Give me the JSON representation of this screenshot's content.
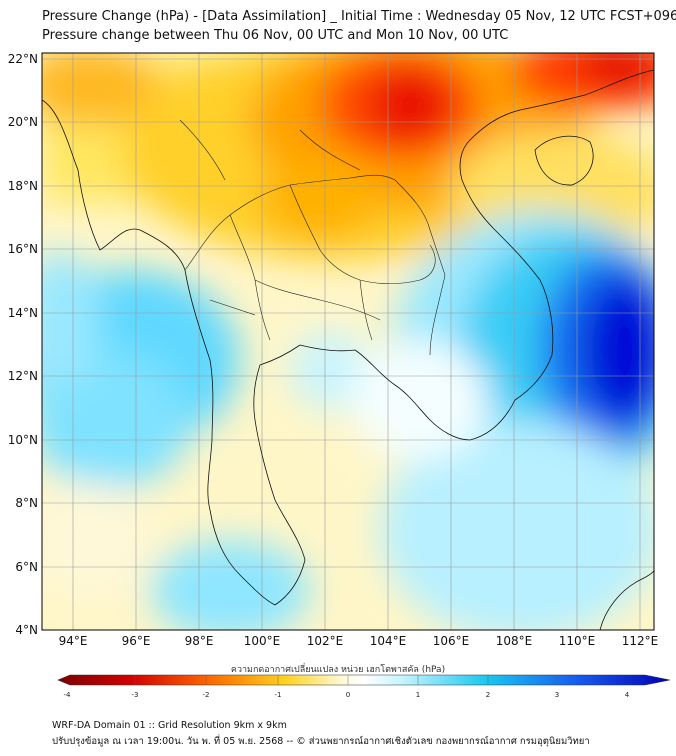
{
  "title_line1": "Pressure Change (hPa) - [Data Assimilation] _ Initial Time : Wednesday 05 Nov, 12 UTC FCST+096",
  "title_line2": "Pressure change between Thu 06 Nov, 00 UTC and Mon 10 Nov, 00 UTC",
  "lat_labels": [
    "22°N",
    "20°N",
    "18°N",
    "16°N",
    "14°N",
    "12°N",
    "10°N",
    "8°N",
    "6°N",
    "4°N"
  ],
  "lon_labels": [
    "94°E",
    "96°E",
    "98°E",
    "100°E",
    "102°E",
    "104°E",
    "106°E",
    "108°E",
    "110°E",
    "112°E"
  ],
  "colorbar": {
    "title": "ความกดอากาศเปลี่ยนแปลง หน่วย เฮกโตพาสคัล (hPa)",
    "ticks": [
      "-4",
      "-3",
      "-2",
      "-1",
      "0",
      "1",
      "2",
      "3",
      "4"
    ],
    "colors": [
      "#7a0000",
      "#e80000",
      "#ff7a00",
      "#ffd21e",
      "#ffffff",
      "#a8eeff",
      "#19c8f0",
      "#1860f0",
      "#0000b8"
    ]
  },
  "footer_line1": "WRF-DA Domain 01 :: Grid Resolution 9km x 9km",
  "footer_line2": "ปรับปรุงข้อมูล ณ เวลา 19:00น. วัน พ. ที่ 05 พ.ย. 2568 -- © ส่วนพยากรณ์อากาศเชิงตัวเลข กองพยากรณ์อากาศ กรมอุตุนิยมวิทยา"
}
